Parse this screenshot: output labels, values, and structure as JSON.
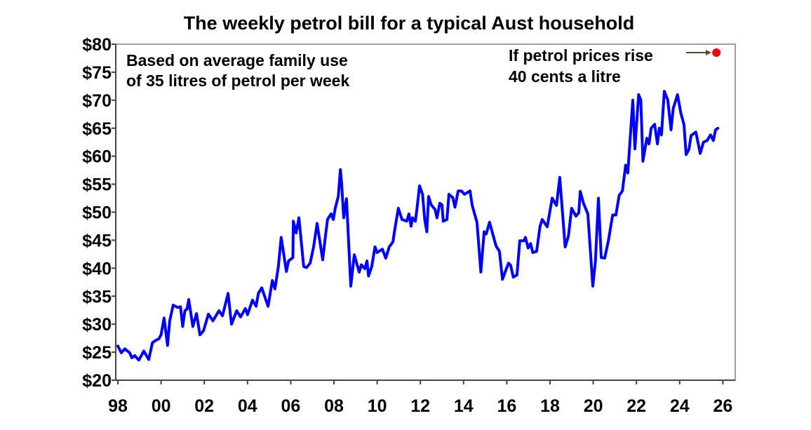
{
  "chart_data": {
    "type": "line",
    "title": "The weekly petrol bill for a typical Aust household",
    "xlabel": "",
    "ylabel": "",
    "xlim": [
      1998,
      2026
    ],
    "ylim": [
      20,
      80
    ],
    "x_tick_labels": [
      "98",
      "00",
      "02",
      "04",
      "06",
      "08",
      "10",
      "12",
      "14",
      "16",
      "18",
      "20",
      "22",
      "24",
      "26"
    ],
    "x_tick_years": [
      1998,
      2000,
      2002,
      2004,
      2006,
      2008,
      2010,
      2012,
      2014,
      2016,
      2018,
      2020,
      2022,
      2024,
      2026
    ],
    "y_ticks": [
      20,
      25,
      30,
      35,
      40,
      45,
      50,
      55,
      60,
      65,
      70,
      75,
      80
    ],
    "y_tick_labels": [
      "$20",
      "$25",
      "$30",
      "$35",
      "$40",
      "$45",
      "$50",
      "$55",
      "$60",
      "$65",
      "$70",
      "$75",
      "$80"
    ],
    "grid": false,
    "line_color": "#0000ff",
    "annotations": {
      "left_line1": "Based on average family use",
      "left_line2": "of 35 litres of petrol per week",
      "right_line1": "If petrol prices rise",
      "right_line2": "40 cents a litre"
    },
    "scenario_point": {
      "x": 2025.7,
      "y": 78.5,
      "color": "#ff0000"
    },
    "arrow_color": "#5a4a2a",
    "series": [
      {
        "points": [
          [
            1998.0,
            26.1
          ],
          [
            1998.16,
            24.9
          ],
          [
            1998.32,
            25.6
          ],
          [
            1998.55,
            24.9
          ],
          [
            1998.65,
            24.0
          ],
          [
            1998.78,
            24.4
          ],
          [
            1998.97,
            23.6
          ],
          [
            1999.2,
            25.2
          ],
          [
            1999.43,
            23.7
          ],
          [
            1999.6,
            26.7
          ],
          [
            1999.75,
            27.1
          ],
          [
            1999.9,
            27.4
          ],
          [
            2000.0,
            28.1
          ],
          [
            2000.14,
            31.1
          ],
          [
            2000.3,
            26.2
          ],
          [
            2000.4,
            30.6
          ],
          [
            2000.56,
            33.4
          ],
          [
            2000.76,
            33.0
          ],
          [
            2000.9,
            33.1
          ],
          [
            2001.0,
            29.6
          ],
          [
            2001.1,
            32.4
          ],
          [
            2001.2,
            32.7
          ],
          [
            2001.28,
            34.4
          ],
          [
            2001.47,
            29.6
          ],
          [
            2001.64,
            31.9
          ],
          [
            2001.8,
            28.1
          ],
          [
            2001.96,
            28.8
          ],
          [
            2002.19,
            31.8
          ],
          [
            2002.4,
            30.6
          ],
          [
            2002.68,
            32.4
          ],
          [
            2002.84,
            31.5
          ],
          [
            2003.1,
            35.5
          ],
          [
            2003.26,
            30.0
          ],
          [
            2003.5,
            32.4
          ],
          [
            2003.68,
            31.3
          ],
          [
            2003.9,
            32.8
          ],
          [
            2004.0,
            31.7
          ],
          [
            2004.23,
            34.3
          ],
          [
            2004.4,
            33.2
          ],
          [
            2004.5,
            35.5
          ],
          [
            2004.66,
            36.5
          ],
          [
            2004.95,
            33.2
          ],
          [
            2005.15,
            37.8
          ],
          [
            2005.27,
            36.3
          ],
          [
            2005.43,
            40.3
          ],
          [
            2005.56,
            45.5
          ],
          [
            2005.8,
            39.4
          ],
          [
            2005.9,
            41.3
          ],
          [
            2006.1,
            41.9
          ],
          [
            2006.12,
            48.4
          ],
          [
            2006.25,
            46.3
          ],
          [
            2006.38,
            49.0
          ],
          [
            2006.6,
            40.3
          ],
          [
            2006.73,
            40.1
          ],
          [
            2006.9,
            40.9
          ],
          [
            2007.06,
            43.8
          ],
          [
            2007.22,
            48.0
          ],
          [
            2007.38,
            44.0
          ],
          [
            2007.48,
            41.5
          ],
          [
            2007.58,
            44.9
          ],
          [
            2007.7,
            48.7
          ],
          [
            2007.87,
            49.7
          ],
          [
            2007.97,
            48.7
          ],
          [
            2008.06,
            50.7
          ],
          [
            2008.2,
            52.8
          ],
          [
            2008.3,
            57.6
          ],
          [
            2008.36,
            54.9
          ],
          [
            2008.45,
            49.0
          ],
          [
            2008.58,
            52.4
          ],
          [
            2008.78,
            36.8
          ],
          [
            2008.94,
            42.4
          ],
          [
            2009.17,
            39.3
          ],
          [
            2009.27,
            40.6
          ],
          [
            2009.43,
            39.9
          ],
          [
            2009.53,
            41.3
          ],
          [
            2009.6,
            38.6
          ],
          [
            2009.75,
            40.3
          ],
          [
            2009.9,
            43.8
          ],
          [
            2010.0,
            42.8
          ],
          [
            2010.24,
            43.4
          ],
          [
            2010.4,
            41.8
          ],
          [
            2010.56,
            43.8
          ],
          [
            2010.73,
            44.7
          ],
          [
            2010.8,
            46.5
          ],
          [
            2010.98,
            50.7
          ],
          [
            2011.15,
            48.7
          ],
          [
            2011.37,
            48.4
          ],
          [
            2011.47,
            49.7
          ],
          [
            2011.57,
            47.5
          ],
          [
            2011.64,
            49.0
          ],
          [
            2011.77,
            48.4
          ],
          [
            2011.86,
            51.2
          ],
          [
            2011.96,
            54.7
          ],
          [
            2012.1,
            53.2
          ],
          [
            2012.2,
            48.7
          ],
          [
            2012.3,
            46.5
          ],
          [
            2012.38,
            52.8
          ],
          [
            2012.5,
            51.3
          ],
          [
            2012.68,
            50.5
          ],
          [
            2012.77,
            49.0
          ],
          [
            2012.9,
            51.6
          ],
          [
            2013.0,
            51.3
          ],
          [
            2013.06,
            48.4
          ],
          [
            2013.23,
            48.7
          ],
          [
            2013.32,
            53.2
          ],
          [
            2013.5,
            52.6
          ],
          [
            2013.6,
            50.9
          ],
          [
            2013.75,
            53.8
          ],
          [
            2013.9,
            53.8
          ],
          [
            2014.04,
            53.2
          ],
          [
            2014.3,
            53.8
          ],
          [
            2014.4,
            51.2
          ],
          [
            2014.62,
            48.2
          ],
          [
            2014.8,
            39.3
          ],
          [
            2014.95,
            46.5
          ],
          [
            2015.05,
            46.1
          ],
          [
            2015.2,
            48.2
          ],
          [
            2015.5,
            44.0
          ],
          [
            2015.66,
            43.0
          ],
          [
            2015.8,
            38.0
          ],
          [
            2015.98,
            39.9
          ],
          [
            2016.08,
            40.9
          ],
          [
            2016.18,
            40.5
          ],
          [
            2016.3,
            38.4
          ],
          [
            2016.47,
            38.8
          ],
          [
            2016.6,
            44.9
          ],
          [
            2016.8,
            44.9
          ],
          [
            2016.86,
            45.5
          ],
          [
            2016.99,
            43.6
          ],
          [
            2017.1,
            44.4
          ],
          [
            2017.2,
            42.8
          ],
          [
            2017.38,
            43.0
          ],
          [
            2017.54,
            47.5
          ],
          [
            2017.64,
            48.7
          ],
          [
            2017.87,
            47.4
          ],
          [
            2018.1,
            52.5
          ],
          [
            2018.3,
            51.2
          ],
          [
            2018.45,
            56.2
          ],
          [
            2018.7,
            43.8
          ],
          [
            2018.85,
            45.7
          ],
          [
            2019.0,
            50.7
          ],
          [
            2019.2,
            49.3
          ],
          [
            2019.33,
            49.9
          ],
          [
            2019.4,
            53.7
          ],
          [
            2019.55,
            51.6
          ],
          [
            2019.75,
            49.7
          ],
          [
            2019.98,
            36.8
          ],
          [
            2020.1,
            41.2
          ],
          [
            2020.24,
            52.5
          ],
          [
            2020.37,
            41.9
          ],
          [
            2020.53,
            41.8
          ],
          [
            2020.7,
            44.9
          ],
          [
            2020.9,
            49.5
          ],
          [
            2021.05,
            49.5
          ],
          [
            2021.2,
            53.0
          ],
          [
            2021.35,
            53.8
          ],
          [
            2021.5,
            58.4
          ],
          [
            2021.6,
            57.0
          ],
          [
            2021.83,
            70.0
          ],
          [
            2021.93,
            61.3
          ],
          [
            2022.1,
            71.0
          ],
          [
            2022.2,
            70.0
          ],
          [
            2022.3,
            59.1
          ],
          [
            2022.48,
            63.2
          ],
          [
            2022.58,
            62.2
          ],
          [
            2022.68,
            65.0
          ],
          [
            2022.84,
            65.7
          ],
          [
            2022.97,
            62.2
          ],
          [
            2023.06,
            65.0
          ],
          [
            2023.16,
            63.8
          ],
          [
            2023.29,
            71.6
          ],
          [
            2023.45,
            70.0
          ],
          [
            2023.6,
            64.7
          ],
          [
            2023.7,
            68.5
          ],
          [
            2023.9,
            71.0
          ],
          [
            2024.05,
            67.8
          ],
          [
            2024.2,
            65.6
          ],
          [
            2024.3,
            60.3
          ],
          [
            2024.43,
            61.2
          ],
          [
            2024.53,
            63.7
          ],
          [
            2024.75,
            64.3
          ],
          [
            2024.95,
            60.5
          ],
          [
            2025.1,
            62.5
          ],
          [
            2025.27,
            62.8
          ],
          [
            2025.43,
            63.8
          ],
          [
            2025.56,
            62.8
          ],
          [
            2025.66,
            64.7
          ],
          [
            2025.77,
            65.0
          ]
        ]
      }
    ]
  }
}
